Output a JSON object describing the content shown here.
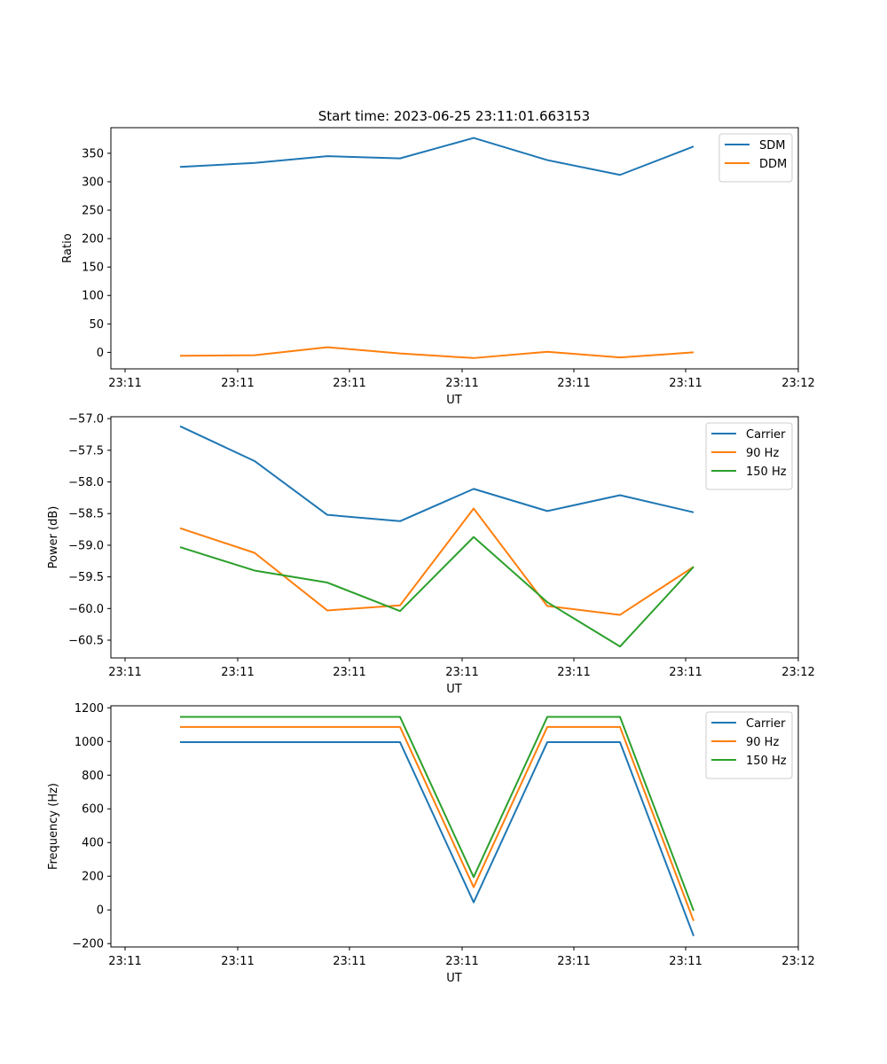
{
  "title": "Start time: 2023-06-25 23:11:01.663153",
  "chart_data": [
    {
      "type": "line",
      "xlabel": "UT",
      "ylabel": "Ratio",
      "x_tick_labels": [
        "23:11",
        "23:11",
        "23:11",
        "23:11",
        "23:11",
        "23:11",
        "23:12"
      ],
      "ylim": [
        -29,
        395
      ],
      "yticks": [
        0,
        50,
        100,
        150,
        200,
        250,
        300,
        350
      ],
      "legend_position": "upper right",
      "series": [
        {
          "name": "SDM",
          "color": "#1f77b4",
          "values": [
            326,
            333,
            345,
            341,
            377,
            338,
            312,
            362
          ]
        },
        {
          "name": "DDM",
          "color": "#ff7f0e",
          "values": [
            -6,
            -5,
            9,
            -2,
            -10,
            1,
            -9,
            0
          ]
        }
      ]
    },
    {
      "type": "line",
      "xlabel": "UT",
      "ylabel": "Power (dB)",
      "x_tick_labels": [
        "23:11",
        "23:11",
        "23:11",
        "23:11",
        "23:11",
        "23:11",
        "23:12"
      ],
      "ylim": [
        -60.78,
        -56.97
      ],
      "yticks": [
        -60.5,
        -60.0,
        -59.5,
        -59.0,
        -58.5,
        -58.0,
        -57.5,
        -57.0
      ],
      "ytick_labels": [
        "−60.5",
        "−60.0",
        "−59.5",
        "−59.0",
        "−58.5",
        "−58.0",
        "−57.5",
        "−57.0"
      ],
      "legend_position": "upper right",
      "series": [
        {
          "name": "Carrier",
          "color": "#1f77b4",
          "values": [
            -57.12,
            -57.67,
            -58.52,
            -58.62,
            -58.11,
            -58.46,
            -58.21,
            -58.48
          ]
        },
        {
          "name": "90 Hz",
          "color": "#ff7f0e",
          "values": [
            -58.73,
            -59.12,
            -60.03,
            -59.95,
            -58.42,
            -59.96,
            -60.1,
            -59.34
          ]
        },
        {
          "name": "150 Hz",
          "color": "#2ca02c",
          "values": [
            -59.03,
            -59.4,
            -59.59,
            -60.04,
            -58.87,
            -59.9,
            -60.6,
            -59.34
          ]
        }
      ]
    },
    {
      "type": "line",
      "xlabel": "UT",
      "ylabel": "Frequency (Hz)",
      "x_tick_labels": [
        "23:11",
        "23:11",
        "23:11",
        "23:11",
        "23:11",
        "23:11",
        "23:12"
      ],
      "ylim": [
        -220,
        1212
      ],
      "yticks": [
        -200,
        0,
        200,
        400,
        600,
        800,
        1000,
        1200
      ],
      "ytick_labels": [
        "−200",
        "0",
        "200",
        "400",
        "600",
        "800",
        "1000",
        "1200"
      ],
      "legend_position": "upper right",
      "series": [
        {
          "name": "Carrier",
          "color": "#1f77b4",
          "values": [
            996,
            996,
            996,
            996,
            45,
            996,
            996,
            -155
          ]
        },
        {
          "name": "90 Hz",
          "color": "#ff7f0e",
          "values": [
            1086,
            1086,
            1086,
            1086,
            135,
            1086,
            1086,
            -65
          ]
        },
        {
          "name": "150 Hz",
          "color": "#2ca02c",
          "values": [
            1146,
            1146,
            1146,
            1146,
            195,
            1146,
            1146,
            -5
          ]
        }
      ]
    }
  ]
}
